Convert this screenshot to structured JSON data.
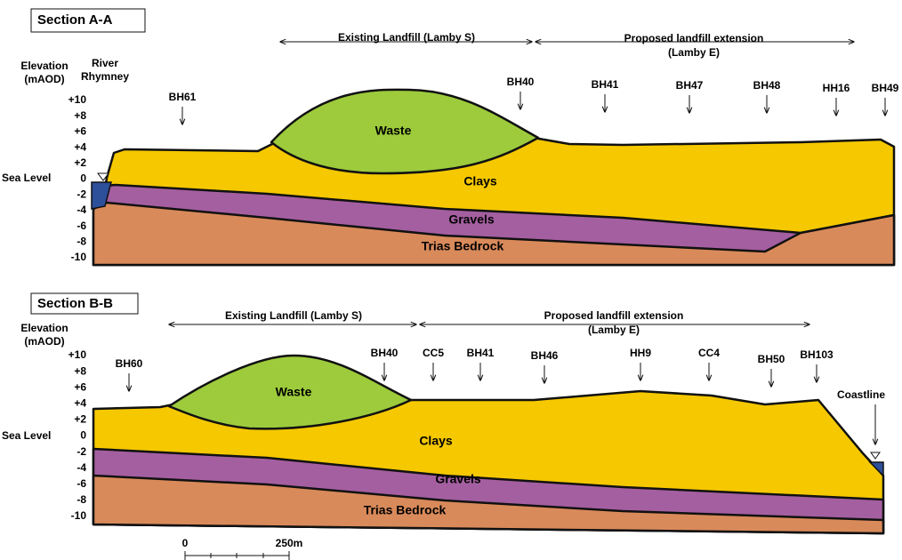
{
  "sections": [
    {
      "title": "Section A-A",
      "axis_title": [
        "Elevation",
        "(mAOD)"
      ],
      "elevation_ticks": [
        "+10",
        "+8",
        "+6",
        "+4",
        "+2",
        "0",
        "-2",
        "-4",
        "-6",
        "-8",
        "-10"
      ],
      "sea_level": "Sea Level",
      "river": [
        "River",
        "Rhymney"
      ],
      "spans": [
        [
          "Existing Landfill (Lamby S)"
        ],
        [
          "Proposed landfill extension",
          "(Lamby E)"
        ]
      ],
      "boreholes": [
        "BH61",
        "BH40",
        "BH41",
        "BH47",
        "BH48",
        "HH16",
        "BH49"
      ],
      "layers": [
        "Waste",
        "Clays",
        "Gravels",
        "Trias Bedrock"
      ]
    },
    {
      "title": "Section B-B",
      "axis_title": [
        "Elevation",
        "(mAOD)"
      ],
      "elevation_ticks": [
        "+10",
        "+8",
        "+6",
        "+4",
        "+2",
        "0",
        "-2",
        "-4",
        "-6",
        "-8",
        "-10"
      ],
      "sea_level": "Sea Level",
      "coastline": "Coastline",
      "spans": [
        [
          "Existing Landfill (Lamby S)"
        ],
        [
          "Proposed landfill extension",
          "(Lamby E)"
        ]
      ],
      "boreholes": [
        "BH60",
        "BH40",
        "CC5",
        "BH41",
        "BH46",
        "HH9",
        "CC4",
        "BH50",
        "BH103"
      ],
      "layers": [
        "Waste",
        "Clays",
        "Gravels",
        "Trias Bedrock"
      ]
    }
  ],
  "scale_bar": {
    "start": "0",
    "end": "250m"
  }
}
